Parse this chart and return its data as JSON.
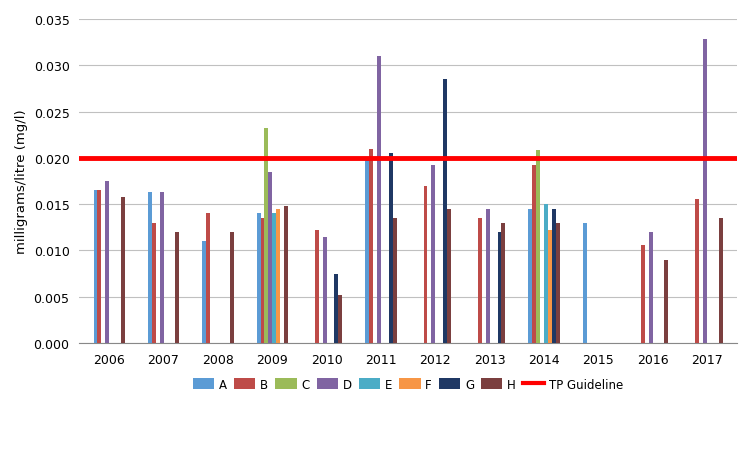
{
  "years": [
    2006,
    2007,
    2008,
    2009,
    2010,
    2011,
    2012,
    2013,
    2014,
    2015,
    2016,
    2017
  ],
  "series": {
    "A": [
      0.0165,
      0.0163,
      0.011,
      0.014,
      0.0,
      0.02,
      0.0,
      0.0,
      0.0145,
      0.013,
      0.0,
      0.0
    ],
    "B": [
      0.0165,
      0.013,
      0.014,
      0.0135,
      0.0122,
      0.021,
      0.017,
      0.0135,
      0.0192,
      0.0,
      0.0106,
      0.0156
    ],
    "C": [
      0.0,
      0.0,
      0.0,
      0.0232,
      0.0,
      0.0,
      0.0,
      0.0,
      0.0208,
      0.0,
      0.0,
      0.0
    ],
    "D": [
      0.0175,
      0.0163,
      0.0,
      0.0185,
      0.0115,
      0.031,
      0.0192,
      0.0145,
      0.0,
      0.0,
      0.012,
      0.0328
    ],
    "E": [
      0.0,
      0.0,
      0.0,
      0.014,
      0.0,
      0.0,
      0.0,
      0.0,
      0.015,
      0.0,
      0.0,
      0.0
    ],
    "F": [
      0.0,
      0.0,
      0.0,
      0.0145,
      0.0,
      0.0,
      0.0,
      0.0,
      0.0122,
      0.0,
      0.0,
      0.0
    ],
    "G": [
      0.0,
      0.0,
      0.0,
      0.0,
      0.0075,
      0.0205,
      0.0285,
      0.012,
      0.0145,
      0.0,
      0.0,
      0.0
    ],
    "H": [
      0.0158,
      0.012,
      0.012,
      0.0148,
      0.0052,
      0.0135,
      0.0145,
      0.013,
      0.013,
      0.0,
      0.009,
      0.0135
    ]
  },
  "colors": {
    "A": "#5B9BD5",
    "B": "#BE4B48",
    "C": "#9BBB59",
    "D": "#8064A2",
    "E": "#4BACC6",
    "F": "#F79646",
    "G": "#1F3864",
    "H": "#7B3F3F"
  },
  "tp_guideline": 0.02,
  "tp_color": "#FF0000",
  "ylabel": "milligrams/litre (mg/l)",
  "ylim": [
    0,
    0.035
  ],
  "yticks": [
    0.0,
    0.005,
    0.01,
    0.015,
    0.02,
    0.025,
    0.03,
    0.035
  ],
  "background_color": "#FFFFFF",
  "grid_color": "#C0C0C0"
}
